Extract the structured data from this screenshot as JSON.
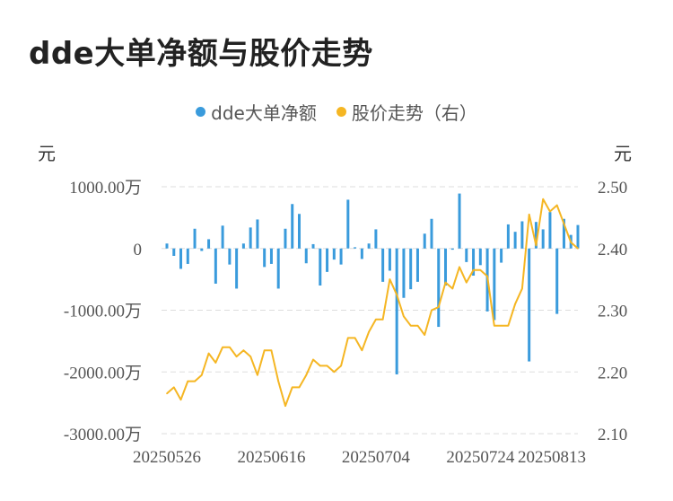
{
  "title": "dde大单净额与股价走势",
  "colors": {
    "bars": "#3a9bdc",
    "line": "#f5b623",
    "grid": "#dddddd"
  },
  "chart_data": {
    "type": "bar+line",
    "legend": [
      "dde大单净额",
      "股价走势（右）"
    ],
    "left_unit": "元",
    "right_unit": "元",
    "left_ticks": [
      "1000.00万",
      "0",
      "-1000.00万",
      "-2000.00万",
      "-3000.00万"
    ],
    "right_ticks": [
      "2.50",
      "2.40",
      "2.30",
      "2.20",
      "2.10"
    ],
    "x_tick_labels": [
      "20250526",
      "20250616",
      "20250704",
      "20250724",
      "20250813"
    ],
    "ylim_left": [
      -3000,
      1000
    ],
    "ylim_right": [
      2.1,
      2.5
    ],
    "series": [
      {
        "name": "dde大单净额",
        "type": "bar",
        "axis": "left",
        "values": [
          80,
          -120,
          -330,
          -250,
          320,
          -40,
          150,
          -570,
          370,
          -260,
          -650,
          80,
          340,
          470,
          -300,
          -250,
          -650,
          320,
          720,
          560,
          -240,
          70,
          -600,
          -380,
          -180,
          -260,
          790,
          20,
          -170,
          80,
          310,
          -540,
          -360,
          -2040,
          -800,
          -660,
          -540,
          240,
          480,
          -1270,
          -600,
          -20,
          890,
          -220,
          -440,
          -270,
          -1020,
          -1160,
          -230,
          390,
          270,
          440,
          -1830,
          430,
          310,
          590,
          -1060,
          480,
          220,
          380
        ]
      },
      {
        "name": "股价走势（右）",
        "type": "line",
        "axis": "right",
        "values": [
          2.165,
          2.175,
          2.155,
          2.185,
          2.185,
          2.195,
          2.23,
          2.215,
          2.24,
          2.24,
          2.225,
          2.235,
          2.225,
          2.195,
          2.235,
          2.235,
          2.185,
          2.145,
          2.175,
          2.175,
          2.195,
          2.22,
          2.21,
          2.21,
          2.2,
          2.21,
          2.255,
          2.255,
          2.235,
          2.265,
          2.285,
          2.285,
          2.35,
          2.325,
          2.29,
          2.275,
          2.275,
          2.26,
          2.3,
          2.305,
          2.345,
          2.335,
          2.37,
          2.345,
          2.365,
          2.365,
          2.355,
          2.275,
          2.275,
          2.275,
          2.31,
          2.335,
          2.455,
          2.405,
          2.48,
          2.46,
          2.47,
          2.44,
          2.41,
          2.4
        ]
      }
    ]
  }
}
